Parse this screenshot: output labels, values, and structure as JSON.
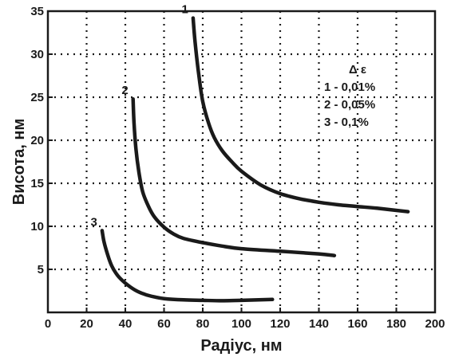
{
  "chart_data": {
    "type": "line",
    "xlabel": "Радіус, нм",
    "ylabel": "Висота, нм",
    "xlim": [
      0,
      200
    ],
    "ylim": [
      0,
      35
    ],
    "xticks": [
      0,
      20,
      40,
      60,
      80,
      100,
      120,
      140,
      160,
      180,
      200
    ],
    "yticks": [
      5,
      10,
      15,
      20,
      25,
      30,
      35
    ],
    "grid": true,
    "legend": {
      "title": "Δ ε",
      "placement": "upper-right",
      "entries": [
        "1 - 0,01%",
        "2 - 0,05%",
        "3 - 0,1%"
      ]
    },
    "series": [
      {
        "label": "1",
        "x": [
          75,
          76,
          78,
          80,
          83,
          86,
          90,
          95,
          100,
          110,
          120,
          130,
          140,
          150,
          160,
          170,
          186
        ],
        "y": [
          34.2,
          31.5,
          27.5,
          24.5,
          22.0,
          20.3,
          18.8,
          17.5,
          16.4,
          14.8,
          13.8,
          13.2,
          12.8,
          12.5,
          12.3,
          12.1,
          11.7
        ]
      },
      {
        "label": "2",
        "x": [
          44,
          44.5,
          45.5,
          47,
          49,
          52,
          55,
          60,
          65,
          70,
          80,
          90,
          100,
          120,
          140,
          148
        ],
        "y": [
          24.8,
          22.0,
          19.0,
          16.3,
          14.0,
          12.3,
          11.1,
          9.9,
          9.1,
          8.6,
          8.1,
          7.7,
          7.4,
          7.1,
          6.8,
          6.6
        ]
      },
      {
        "label": "3",
        "x": [
          28,
          29,
          31,
          33,
          36,
          40,
          45,
          50,
          55,
          60,
          70,
          80,
          90,
          100,
          116
        ],
        "y": [
          9.5,
          8.2,
          6.6,
          5.4,
          4.3,
          3.4,
          2.6,
          2.1,
          1.8,
          1.6,
          1.45,
          1.4,
          1.35,
          1.4,
          1.5
        ]
      }
    ]
  }
}
